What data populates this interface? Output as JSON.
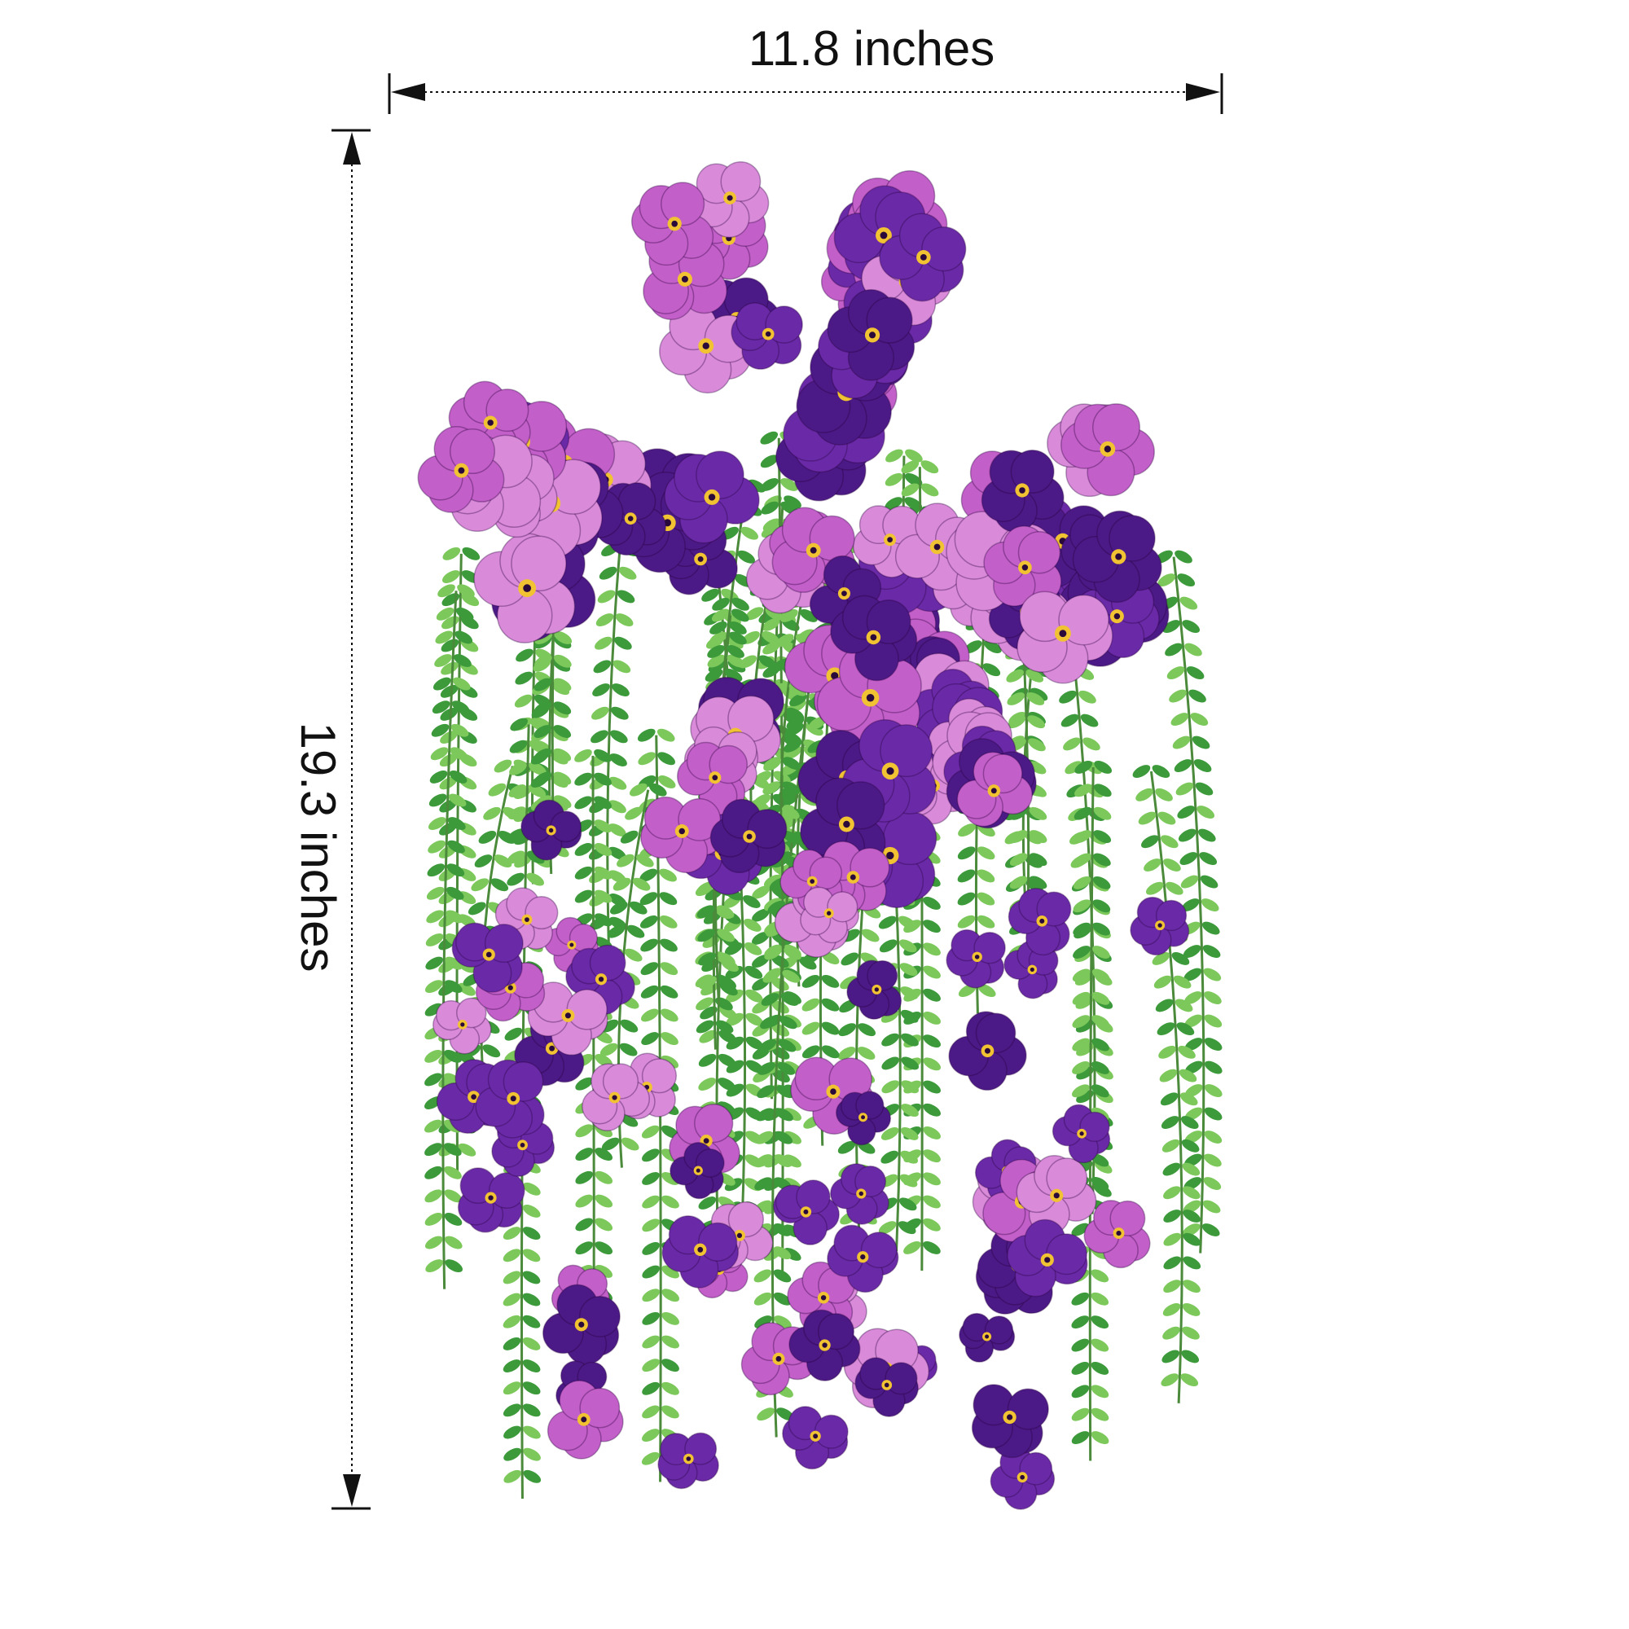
{
  "dimensions": {
    "width_label": "11.8 inches",
    "height_label": "19.3 inches"
  },
  "colors": {
    "background": "#ffffff",
    "dimension_line": "#111111",
    "deep_purple": "#4b1a86",
    "violet": "#6a2aa8",
    "orchid_pink": "#c35fc9",
    "light_pink": "#d98ad9",
    "leaf_green": "#3c9a3a",
    "light_green": "#7cc85a",
    "flower_center": "#f1c232"
  },
  "image": {
    "subject_icon": "hanging-flower-bush-icon"
  }
}
